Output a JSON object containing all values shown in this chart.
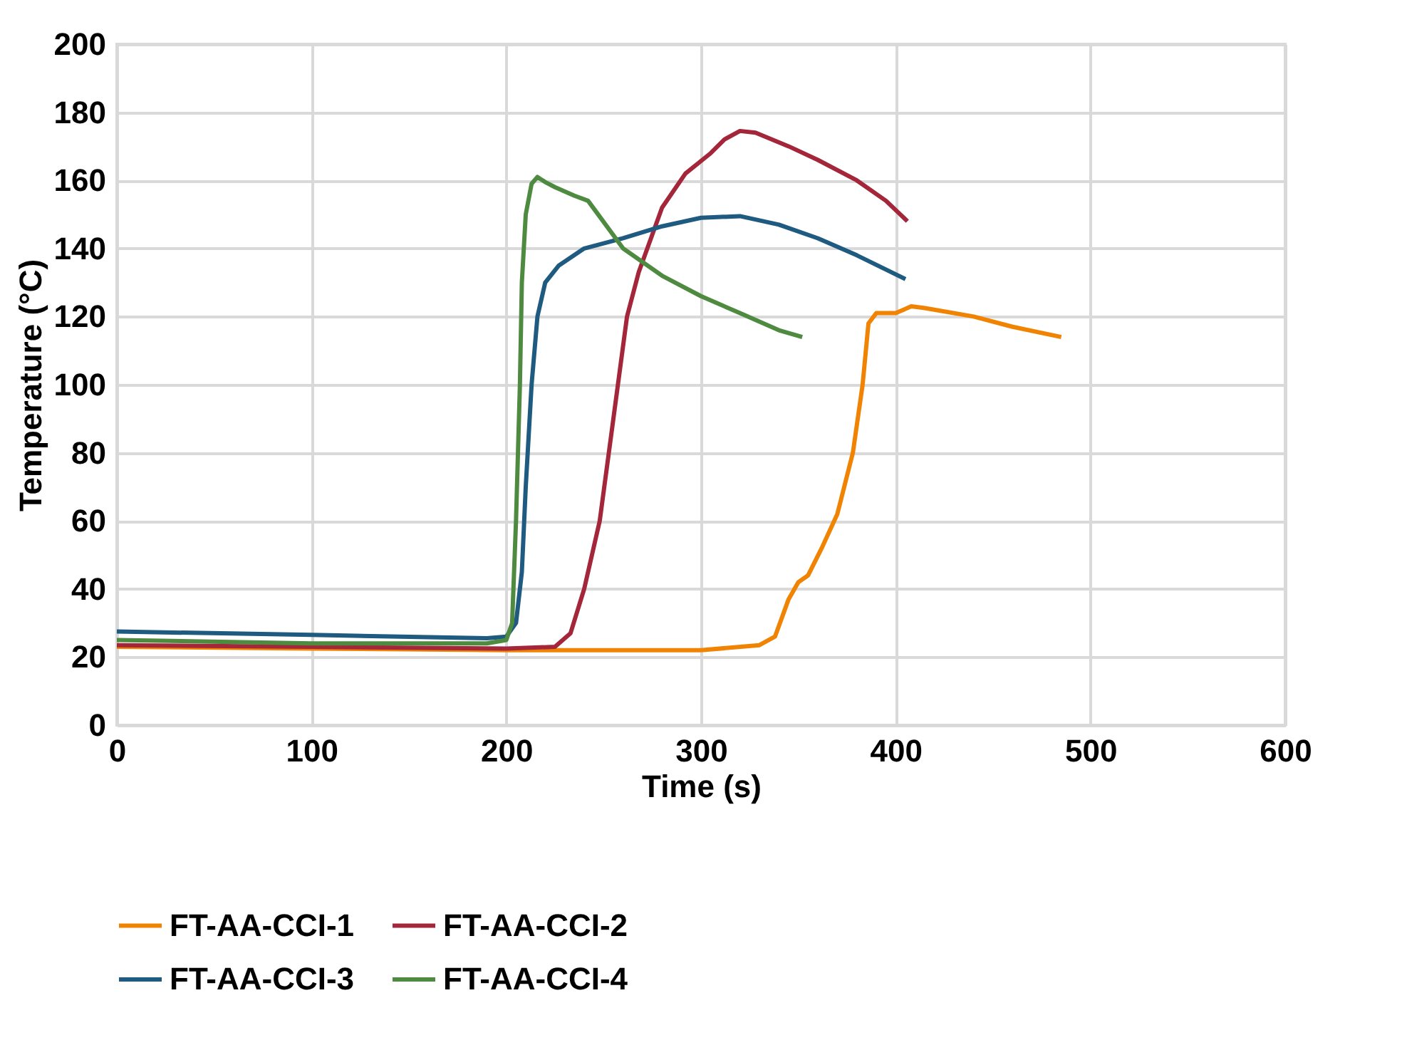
{
  "chart_data": {
    "type": "line",
    "xlabel": "Time (s)",
    "ylabel": "Temperature (°C)",
    "xlim": [
      0,
      600
    ],
    "ylim": [
      0,
      200
    ],
    "xticks": [
      0,
      100,
      200,
      300,
      400,
      500,
      600
    ],
    "yticks": [
      0,
      20,
      40,
      60,
      80,
      100,
      120,
      140,
      160,
      180,
      200
    ],
    "grid": true,
    "legend": "bottom",
    "marker": "none",
    "line_style": "solid",
    "series": [
      {
        "name": "FT-AA-CCI-1",
        "color": "#f18303",
        "x": [
          0,
          100,
          200,
          300,
          330,
          338,
          345,
          350,
          355,
          362,
          370,
          378,
          383,
          386,
          390,
          400,
          408,
          415,
          440,
          460,
          485
        ],
        "values": [
          23,
          22.5,
          22,
          22,
          23.5,
          26,
          37,
          42,
          44,
          52,
          62,
          80,
          100,
          118,
          121,
          121,
          123,
          122.5,
          120,
          117,
          114
        ]
      },
      {
        "name": "FT-AA-CCI-2",
        "color": "#a3263a",
        "x": [
          0,
          100,
          200,
          225,
          233,
          240,
          248,
          255,
          262,
          268,
          280,
          292,
          305,
          312,
          320,
          328,
          345,
          360,
          380,
          395,
          406
        ],
        "values": [
          23.5,
          23,
          22.5,
          23,
          27,
          40,
          60,
          90,
          120,
          133,
          152,
          162,
          168,
          172,
          174.5,
          174,
          170,
          166,
          160,
          154,
          148
        ]
      },
      {
        "name": "FT-AA-CCI-3",
        "color": "#1f5a80",
        "x": [
          0,
          100,
          190,
          200,
          205,
          208,
          210,
          213,
          216,
          220,
          227,
          240,
          260,
          280,
          300,
          320,
          340,
          360,
          380,
          405
        ],
        "values": [
          27.5,
          26.5,
          25.5,
          26,
          30,
          45,
          70,
          100,
          120,
          130,
          135,
          140,
          143,
          146.5,
          149,
          149.5,
          147,
          143,
          138,
          131
        ]
      },
      {
        "name": "FT-AA-CCI-4",
        "color": "#4e8a3f",
        "x": [
          0,
          100,
          190,
          200,
          203,
          205,
          207,
          208,
          210,
          213,
          216,
          220,
          225,
          235,
          242,
          260,
          280,
          300,
          320,
          340,
          352
        ],
        "values": [
          25,
          24,
          24,
          25,
          30,
          60,
          100,
          130,
          150,
          159,
          161,
          159.5,
          158,
          155.5,
          154,
          140,
          132,
          126,
          121,
          116,
          114
        ]
      }
    ]
  }
}
